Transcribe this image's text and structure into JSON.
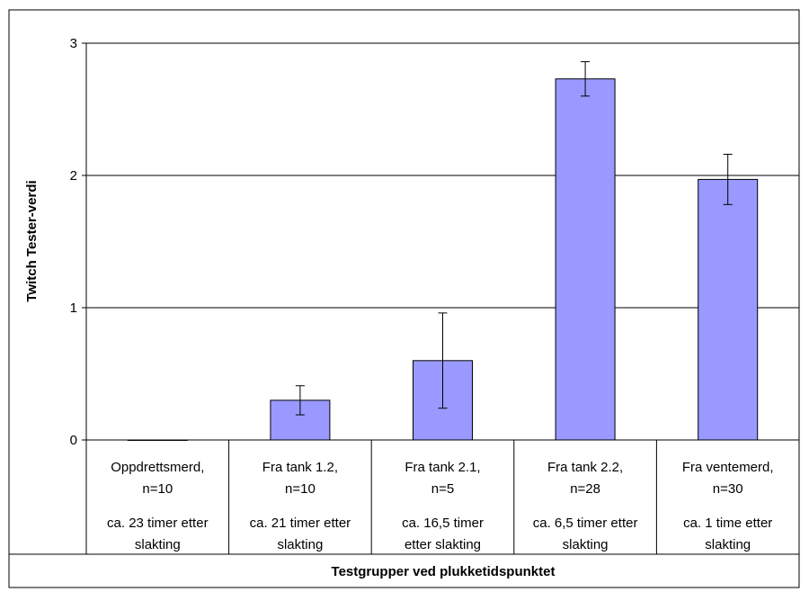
{
  "chart_data": {
    "type": "bar",
    "title": "",
    "ylabel": "Twitch Tester-verdi",
    "xlabel": "Testgrupper ved plukketidspunktet",
    "ylim": [
      0,
      3
    ],
    "yticks": [
      "0",
      "1",
      "2",
      "3"
    ],
    "grid": true,
    "legend": "none",
    "bar_color": "#9999ff",
    "categories": [
      {
        "line1": "Oppdrettsmerd,",
        "line2": "n=10",
        "time1": "ca. 23 timer etter",
        "time2": "slakting"
      },
      {
        "line1": "Fra tank 1.2,",
        "line2": "n=10",
        "time1": "ca. 21 timer etter",
        "time2": "slakting"
      },
      {
        "line1": "Fra tank 2.1,",
        "line2": "n=5",
        "time1": "ca. 16,5 timer",
        "time2": "etter slakting"
      },
      {
        "line1": "Fra tank 2.2,",
        "line2": "n=28",
        "time1": "ca. 6,5 timer etter",
        "time2": "slakting"
      },
      {
        "line1": "Fra ventemerd,",
        "line2": "n=30",
        "time1": "ca. 1 time etter",
        "time2": "slakting"
      }
    ],
    "values": [
      0,
      0.3,
      0.6,
      2.73,
      1.97
    ],
    "errors": [
      0,
      0.11,
      0.36,
      0.13,
      0.19
    ]
  }
}
